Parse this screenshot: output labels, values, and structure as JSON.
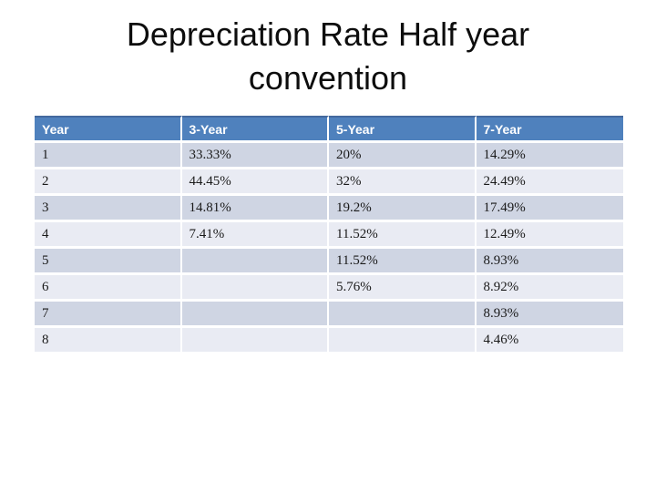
{
  "slide": {
    "title_line1": "Depreciation Rate Half year",
    "title_line2": "convention"
  },
  "table": {
    "headers": [
      "Year",
      "3-Year",
      "5-Year",
      "7-Year"
    ],
    "rows": [
      [
        "1",
        "33.33%",
        "20%",
        "14.29%"
      ],
      [
        "2",
        "44.45%",
        "32%",
        "24.49%"
      ],
      [
        "3",
        "14.81%",
        "19.2%",
        "17.49%"
      ],
      [
        "4",
        "7.41%",
        "11.52%",
        "12.49%"
      ],
      [
        "5",
        "",
        "11.52%",
        "8.93%"
      ],
      [
        "6",
        "",
        "5.76%",
        "8.92%"
      ],
      [
        "7",
        "",
        "",
        "8.93%"
      ],
      [
        "8",
        "",
        "",
        "4.46%"
      ]
    ]
  },
  "colors": {
    "header_bg": "#4f81bd",
    "header_text": "#ffffff",
    "header_border": "#44699e",
    "row_odd": "#cfd5e3",
    "row_even": "#e9ebf3"
  }
}
